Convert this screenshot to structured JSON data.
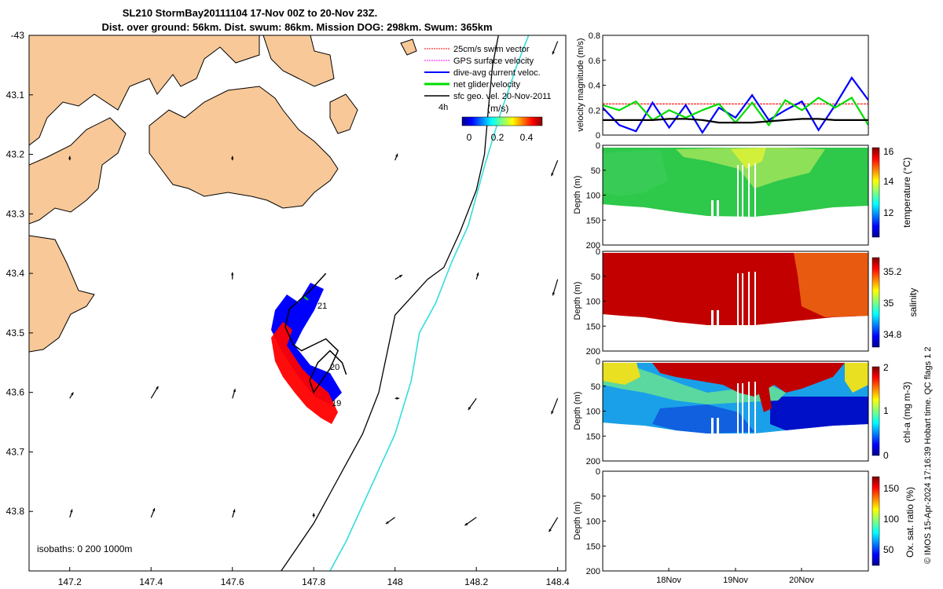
{
  "header": {
    "title_line1": "SL210 StormBay20111104 17-Nov 00Z to 20-Nov 23Z.",
    "title_line2": "Dist. over ground: 56km. Dist. swum: 86km. Mission DOG: 298km. Swum: 365km"
  },
  "copyright": "© IMOS 15-Apr-2024 17:16:39 Hobart time. QC flags 1  2",
  "chart_data": [
    {
      "type": "map",
      "name": "glider track map",
      "xlim": [
        147.1,
        148.42
      ],
      "ylim": [
        -43.9,
        -43.0
      ],
      "x_ticks": [
        "147.2",
        "147.4",
        "147.6",
        "147.8",
        "148",
        "148.2",
        "148.4"
      ],
      "y_ticks": [
        "-43",
        "43.1",
        "43.2",
        "43.3",
        "43.4",
        "43.5",
        "43.6",
        "43.7",
        "43.8"
      ],
      "legend": [
        {
          "label": "25cm/s swim vector",
          "color": "#ff0000"
        },
        {
          "label": "GPS surface velocity",
          "color": "#ff00ff"
        },
        {
          "label": "dive-avg current veloc.",
          "color": "#0000ff"
        },
        {
          "label": "net glider velocity",
          "color": "#00dd00"
        },
        {
          "label": "sfc geo. vel. 20-Nov-2011",
          "color": "#000000"
        }
      ],
      "colorbar": {
        "label": "(m/s)",
        "ticks": [
          "0",
          "0.2",
          "0.4"
        ],
        "range": [
          0,
          0.5
        ],
        "scale_label": "4h"
      },
      "isobaths_label": "isobaths: 0   200  1000m",
      "track_labels": [
        "21",
        "20",
        "19"
      ],
      "track_lon": [
        147.83,
        147.79,
        147.74,
        147.73,
        147.75,
        147.77,
        147.8,
        147.83,
        147.86,
        147.84,
        147.82,
        147.8,
        147.79,
        147.81,
        147.84,
        147.87,
        147.88
      ],
      "track_lat": [
        -43.4,
        -43.43,
        -43.46,
        -43.49,
        -43.52,
        -43.53,
        -43.52,
        -43.51,
        -43.53,
        -43.56,
        -43.58,
        -43.6,
        -43.58,
        -43.55,
        -43.53,
        -43.55,
        -43.57
      ],
      "isobath_200_lon": [
        147.72,
        147.76,
        147.8,
        147.84,
        147.88,
        147.92,
        147.96,
        148.0,
        148.04,
        148.08,
        148.12,
        148.16,
        148.2,
        148.22,
        148.23,
        148.24,
        148.26
      ],
      "isobath_200_lat": [
        -43.9,
        -43.86,
        -43.82,
        -43.77,
        -43.72,
        -43.67,
        -43.6,
        -43.47,
        -43.44,
        -43.41,
        -43.39,
        -43.33,
        -43.26,
        -43.2,
        -43.12,
        -43.05,
        -42.98
      ],
      "isobath_1000_lon": [
        147.84,
        147.88,
        147.92,
        147.96,
        148.0,
        148.04,
        148.06,
        148.1,
        148.14,
        148.18,
        148.22,
        148.26,
        148.3,
        148.34,
        148.38
      ],
      "isobath_1000_lat": [
        -43.9,
        -43.85,
        -43.79,
        -43.73,
        -43.67,
        -43.58,
        -43.5,
        -43.45,
        -43.38,
        -43.32,
        -43.22,
        -43.13,
        -43.05,
        -42.98,
        -42.95
      ],
      "geo_vectors": [
        {
          "lon": 147.2,
          "lat": -43.61,
          "u": 0.6,
          "v": 1.0,
          "len": 0.5
        },
        {
          "lon": 147.4,
          "lat": -43.61,
          "u": 0.6,
          "v": 1.0,
          "len": 1.0
        },
        {
          "lon": 147.6,
          "lat": -43.61,
          "u": 0.3,
          "v": 1.0,
          "len": 0.7
        },
        {
          "lon": 147.2,
          "lat": -43.81,
          "u": 0.3,
          "v": 1.0,
          "len": 0.6
        },
        {
          "lon": 147.4,
          "lat": -43.81,
          "u": 0.4,
          "v": 1.0,
          "len": 0.7
        },
        {
          "lon": 147.6,
          "lat": -43.81,
          "u": 0.3,
          "v": 1.0,
          "len": 0.6
        },
        {
          "lon": 147.6,
          "lat": -43.41,
          "u": 0.0,
          "v": 1.0,
          "len": 0.5
        },
        {
          "lon": 148.0,
          "lat": -43.41,
          "u": 1.0,
          "v": 0.6,
          "len": 0.6
        },
        {
          "lon": 148.2,
          "lat": -43.41,
          "u": 0.3,
          "v": 1.0,
          "len": 0.5
        },
        {
          "lon": 148.4,
          "lat": -43.41,
          "u": -0.3,
          "v": -1.0,
          "len": 1.2
        },
        {
          "lon": 148.0,
          "lat": -43.81,
          "u": -1.0,
          "v": -0.7,
          "len": 0.8
        },
        {
          "lon": 148.2,
          "lat": -43.81,
          "u": -1.0,
          "v": -0.7,
          "len": 1.0
        },
        {
          "lon": 148.4,
          "lat": -43.81,
          "u": -0.6,
          "v": -1.0,
          "len": 1.2
        },
        {
          "lon": 148.2,
          "lat": -43.61,
          "u": -0.7,
          "v": -1.0,
          "len": 1.0
        },
        {
          "lon": 148.4,
          "lat": -43.61,
          "u": -0.4,
          "v": -1.0,
          "len": 1.2
        },
        {
          "lon": 148.4,
          "lat": -43.21,
          "u": -0.4,
          "v": -1.0,
          "len": 1.2
        },
        {
          "lon": 148.4,
          "lat": -43.01,
          "u": -0.4,
          "v": -1.0,
          "len": 1.0
        },
        {
          "lon": 148.0,
          "lat": -43.21,
          "u": 0.4,
          "v": 1.0,
          "len": 0.5
        },
        {
          "lon": 147.2,
          "lat": -43.21,
          "u": 0.0,
          "v": 1.0,
          "len": 0.3
        },
        {
          "lon": 147.6,
          "lat": -43.21,
          "u": 0.0,
          "v": 1.0,
          "len": 0.3
        },
        {
          "lon": 147.8,
          "lat": -43.81,
          "u": 0.0,
          "v": 1.0,
          "len": 0.3
        },
        {
          "lon": 148.0,
          "lat": -43.61,
          "u": 1.0,
          "v": 0.0,
          "len": 0.3
        }
      ]
    },
    {
      "type": "line",
      "name": "velocity magnitude",
      "ylabel": "velocity magnitude (m/s)",
      "ylim": [
        0,
        0.8
      ],
      "y_ticks": [
        "0",
        "0.2",
        "0.4",
        "0.6",
        "0.8"
      ],
      "x": [
        0,
        0.25,
        0.5,
        0.75,
        1,
        1.25,
        1.5,
        1.75,
        2,
        2.25,
        2.5,
        2.75,
        3,
        3.25,
        3.5,
        3.75,
        4
      ],
      "series": [
        {
          "name": "25cm/s swim vector",
          "color": "#ff0000",
          "values": [
            0.25,
            0.25,
            0.25,
            0.25,
            0.25,
            0.25,
            0.25,
            0.25,
            0.25,
            0.25,
            0.25,
            0.25,
            0.25,
            0.25,
            0.25,
            0.25,
            0.25
          ]
        },
        {
          "name": "dive-avg current veloc.",
          "color": "#0000ff",
          "values": [
            0.22,
            0.08,
            0.03,
            0.26,
            0.06,
            0.24,
            0.02,
            0.22,
            0.14,
            0.32,
            0.12,
            0.2,
            0.27,
            0.04,
            0.24,
            0.46,
            0.28
          ]
        },
        {
          "name": "net glider velocity",
          "color": "#00dd00",
          "values": [
            0.24,
            0.2,
            0.27,
            0.12,
            0.2,
            0.14,
            0.2,
            0.25,
            0.1,
            0.26,
            0.08,
            0.28,
            0.2,
            0.3,
            0.22,
            0.3,
            0.08
          ]
        },
        {
          "name": "sfc geo. vel.",
          "color": "#000000",
          "values": [
            0.12,
            0.12,
            0.12,
            0.12,
            0.13,
            0.13,
            0.12,
            0.1,
            0.1,
            0.1,
            0.11,
            0.12,
            0.13,
            0.13,
            0.12,
            0.12,
            0.12
          ]
        }
      ]
    },
    {
      "type": "heatmap",
      "name": "temperature",
      "ylabel": "Depth (m)",
      "y_ticks": [
        "0",
        "50",
        "100",
        "150",
        "200"
      ],
      "ylim": [
        0,
        200
      ],
      "colorbar_label": "temperature (°C)",
      "colorbar_ticks": [
        "12",
        "14",
        "16"
      ],
      "colorbar_range": [
        10,
        16.2
      ]
    },
    {
      "type": "heatmap",
      "name": "salinity",
      "ylabel": "Depth (m)",
      "y_ticks": [
        "0",
        "50",
        "100",
        "150",
        "200"
      ],
      "ylim": [
        0,
        200
      ],
      "colorbar_label": "salinity",
      "colorbar_ticks": [
        "34.8",
        "35",
        "35.2"
      ],
      "colorbar_range": [
        34.7,
        35.28
      ]
    },
    {
      "type": "heatmap",
      "name": "chl-a",
      "ylabel": "Depth (m)",
      "y_ticks": [
        "0",
        "50",
        "100",
        "150",
        "200"
      ],
      "ylim": [
        0,
        200
      ],
      "colorbar_label": "chl-a (mg m-3)",
      "colorbar_ticks": [
        "0",
        "1",
        "2"
      ],
      "colorbar_range": [
        0,
        2
      ]
    },
    {
      "type": "heatmap",
      "name": "oxygen saturation",
      "ylabel": "Depth (m)",
      "y_ticks": [
        "0",
        "50",
        "100",
        "150",
        "200"
      ],
      "ylim": [
        0,
        200
      ],
      "x_ticks": [
        "18Nov",
        "19Nov",
        "20Nov"
      ],
      "colorbar_label": "Ox. sat. ratio (%)",
      "colorbar_ticks": [
        "50",
        "100",
        "150"
      ],
      "colorbar_range": [
        25,
        175
      ]
    }
  ]
}
